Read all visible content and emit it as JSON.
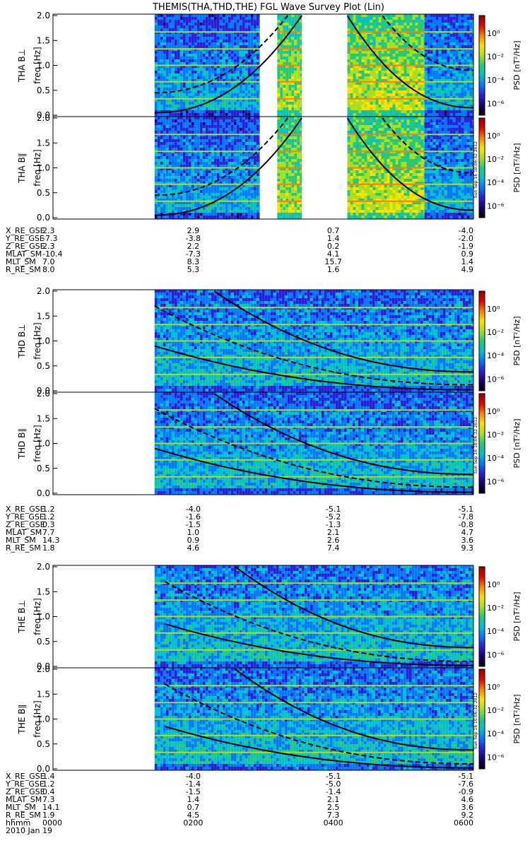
{
  "title": "THEMIS(THA,THD,THE) FGL Wave Survey Plot (Lin)",
  "colorbar": {
    "label": "PSD [nT²/Hz]",
    "ticks": [
      "10⁰",
      "10⁻²",
      "10⁻⁴",
      "10⁻⁶"
    ],
    "tick_values": [
      0,
      -2,
      -4,
      -6
    ],
    "range_log": [
      -7,
      1.5
    ],
    "colors": [
      "#000000",
      "#1c0070",
      "#2a1fd8",
      "#0078ff",
      "#00c0c8",
      "#28c878",
      "#a8e020",
      "#ffe000",
      "#ff8000",
      "#e00000",
      "#900000"
    ]
  },
  "timestamp": "Sun Sep 16 10:06:32 2012",
  "time_axis": {
    "label": "hhmm",
    "ticks": [
      "0000",
      "0200",
      "0400",
      "0600"
    ],
    "tick_hours": [
      0,
      2,
      4,
      6
    ],
    "date": "2010 Jan 19",
    "range_hours": [
      0,
      6
    ]
  },
  "chart_data": [
    {
      "type": "heatmap",
      "spacecraft": "THA",
      "panels": [
        {
          "ylabel": "THA B⊥",
          "ylabel2": "freq [Hz]"
        },
        {
          "ylabel": "THA B∥",
          "ylabel2": "freq [Hz]"
        }
      ],
      "ylim": [
        0,
        2.0
      ],
      "yticks": [
        "0.0",
        "0.5",
        "1.0",
        "1.5",
        "2.0"
      ],
      "ytick_values": [
        0,
        0.5,
        1.0,
        1.5,
        2.0
      ],
      "data_segments_hours": [
        [
          1.45,
          2.95
        ],
        [
          3.2,
          3.55
        ],
        [
          4.2,
          5.3
        ],
        [
          5.3,
          6.0
        ]
      ],
      "segment_levels": [
        -3.6,
        -1.8,
        -1.6,
        -3.5
      ],
      "curves": [
        {
          "style": "solid",
          "x": [
            1.45,
            3.0,
            3.55
          ],
          "y": [
            0.05,
            0.8,
            2.0
          ],
          "shape": "rising"
        },
        {
          "style": "dashed",
          "x": [
            1.45,
            2.6,
            3.35
          ],
          "y": [
            0.45,
            1.2,
            2.0
          ],
          "shape": "rising"
        },
        {
          "style": "solid",
          "x": [
            4.2,
            5.5,
            6.0
          ],
          "y": [
            2.0,
            0.5,
            0.15
          ],
          "shape": "falling"
        },
        {
          "style": "dashed",
          "x": [
            4.7,
            5.6,
            6.0
          ],
          "y": [
            2.0,
            1.4,
            0.9
          ],
          "shape": "falling"
        }
      ],
      "ephemeris": {
        "labels": [
          "X_RE_GSE",
          "Y_RE_GSE",
          "Z_RE_GSE",
          "MLAT_SM",
          "MLT_SM",
          "R_RE_SM"
        ],
        "values": [
          [
            "2.3",
            "2.9",
            "0.7",
            "-4.0"
          ],
          [
            "-7.3",
            "-3.8",
            "1.4",
            "-2.0"
          ],
          [
            "2.3",
            "2.2",
            "0.2",
            "-1.9"
          ],
          [
            "-10.4",
            "-7.3",
            "4.1",
            "0.9"
          ],
          [
            "7.0",
            "8.3",
            "15.7",
            "1.4"
          ],
          [
            "8.0",
            "5.3",
            "1.6",
            "4.9"
          ]
        ]
      }
    },
    {
      "type": "heatmap",
      "spacecraft": "THD",
      "panels": [
        {
          "ylabel": "THD B⊥",
          "ylabel2": "freq [Hz]"
        },
        {
          "ylabel": "THD B∥",
          "ylabel2": "freq [Hz]"
        }
      ],
      "ylim": [
        0,
        2.0
      ],
      "yticks": [
        "0.0",
        "0.5",
        "1.0",
        "1.5",
        "2.0"
      ],
      "ytick_values": [
        0,
        0.5,
        1.0,
        1.5,
        2.0
      ],
      "data_segments_hours": [
        [
          1.45,
          6.0
        ]
      ],
      "segment_levels": [
        -3.4
      ],
      "curves": [
        {
          "style": "solid",
          "x": [
            2.3,
            4.0,
            6.0
          ],
          "y": [
            2.0,
            0.9,
            0.38
          ],
          "shape": "falling"
        },
        {
          "style": "dashed",
          "x": [
            1.45,
            3.0,
            6.0
          ],
          "y": [
            1.7,
            0.4,
            0.12
          ],
          "shape": "falling"
        },
        {
          "style": "solid",
          "x": [
            1.45,
            3.0,
            6.0
          ],
          "y": [
            0.9,
            0.25,
            0.02
          ],
          "shape": "falling"
        }
      ],
      "ephemeris": {
        "labels": [
          "X_RE_GSE",
          "Y_RE_GSE",
          "Z_RE_GSE",
          "MLAT_SM",
          "MLT_SM",
          "R_RE_SM"
        ],
        "values": [
          [
            "1.2",
            "-4.0",
            "-5.1",
            "-5.1"
          ],
          [
            "1.2",
            "-1.6",
            "-5.2",
            "-7.8"
          ],
          [
            "0.3",
            "-1.5",
            "-1.3",
            "-0.8"
          ],
          [
            "7.7",
            "1.0",
            "2.1",
            "4.7"
          ],
          [
            "14.3",
            "0.9",
            "2.6",
            "3.6"
          ],
          [
            "1.8",
            "4.6",
            "7.4",
            "9.3"
          ]
        ]
      }
    },
    {
      "type": "heatmap",
      "spacecraft": "THE",
      "panels": [
        {
          "ylabel": "THE B⊥",
          "ylabel2": "freq [Hz]"
        },
        {
          "ylabel": "THE B∥",
          "ylabel2": "freq [Hz]"
        }
      ],
      "ylim": [
        0,
        2.0
      ],
      "yticks": [
        "0.0",
        "0.5",
        "1.0",
        "1.5",
        "2.0"
      ],
      "ytick_values": [
        0,
        0.5,
        1.0,
        1.5,
        2.0
      ],
      "data_segments_hours": [
        [
          1.45,
          6.0
        ]
      ],
      "segment_levels": [
        -3.3
      ],
      "curves": [
        {
          "style": "solid",
          "x": [
            2.6,
            4.0,
            6.0
          ],
          "y": [
            2.0,
            1.0,
            0.38
          ],
          "shape": "falling"
        },
        {
          "style": "dashed",
          "x": [
            1.6,
            3.0,
            6.0
          ],
          "y": [
            1.7,
            0.35,
            0.1
          ],
          "shape": "falling"
        },
        {
          "style": "solid",
          "x": [
            1.6,
            3.0,
            6.0
          ],
          "y": [
            0.85,
            0.2,
            0.02
          ],
          "shape": "falling"
        }
      ],
      "ephemeris": {
        "labels": [
          "X_RE_GSE",
          "Y_RE_GSE",
          "Z_RE_GSE",
          "MLAT_SM",
          "MLT_SM",
          "R_RE_SM"
        ],
        "values": [
          [
            "1.4",
            "-4.0",
            "-5.1",
            "-5.1"
          ],
          [
            "1.2",
            "-1.4",
            "-5.0",
            "-7.6"
          ],
          [
            "0.4",
            "-1.5",
            "-1.4",
            "-0.9"
          ],
          [
            "7.3",
            "1.4",
            "2.1",
            "4.6"
          ],
          [
            "14.1",
            "0.7",
            "2.5",
            "3.6"
          ],
          [
            "1.9",
            "4.5",
            "7.3",
            "9.2"
          ]
        ]
      }
    }
  ]
}
